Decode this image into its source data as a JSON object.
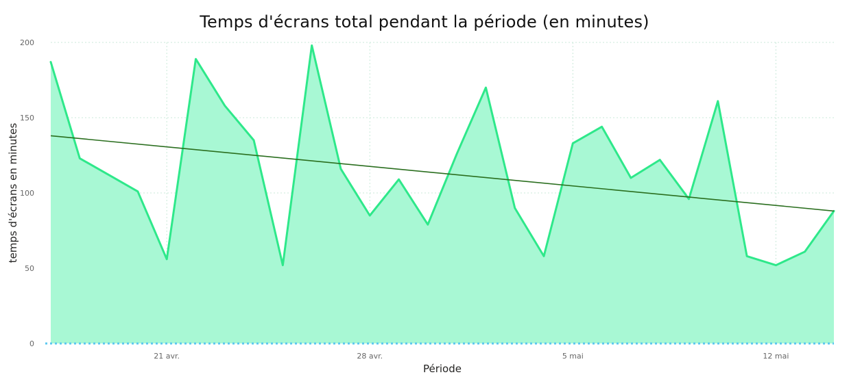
{
  "chart_data": {
    "type": "area",
    "title": "Temps d'écrans total pendant la période (en minutes)",
    "xlabel": "Période",
    "ylabel": "temps d'écrans en minutes",
    "x_tick_labels": [
      "21 avr.",
      "28 avr.",
      "5 mai",
      "12 mai"
    ],
    "x_tick_dates": [
      "2024-04-21",
      "2024-04-28",
      "2024-05-05",
      "2024-05-12"
    ],
    "y_ticks": [
      0,
      50,
      100,
      150,
      200
    ],
    "ylim": [
      0,
      200
    ],
    "xlim": [
      "2024-04-16",
      "2024-05-14"
    ],
    "grid": "dotted",
    "legend": "none",
    "x": [
      "2024-04-17",
      "2024-04-18",
      "2024-04-19",
      "2024-04-20",
      "2024-04-21",
      "2024-04-22",
      "2024-04-23",
      "2024-04-24",
      "2024-04-25",
      "2024-04-26",
      "2024-04-27",
      "2024-04-28",
      "2024-04-29",
      "2024-04-30",
      "2024-05-01",
      "2024-05-02",
      "2024-05-03",
      "2024-05-04",
      "2024-05-05",
      "2024-05-06",
      "2024-05-07",
      "2024-05-08",
      "2024-05-09",
      "2024-05-10",
      "2024-05-11",
      "2024-05-12",
      "2024-05-13",
      "2024-05-14"
    ],
    "series": [
      {
        "values": [
          187,
          123,
          112,
          101,
          56,
          189,
          158,
          135,
          52,
          198,
          116,
          85,
          109,
          79,
          126,
          170,
          90,
          58,
          133,
          144,
          110,
          122,
          96,
          161,
          58,
          52,
          61,
          88
        ],
        "color": "#2ee88a",
        "fill": "#a8f8d4"
      },
      {
        "kind": "trend",
        "start": [
          "2024-04-17",
          138
        ],
        "end": [
          "2024-05-14",
          88
        ],
        "color": "#2a6e1e"
      }
    ],
    "zero_line_color": "#5cc8f0",
    "grid_color": "#c8e8d8"
  }
}
